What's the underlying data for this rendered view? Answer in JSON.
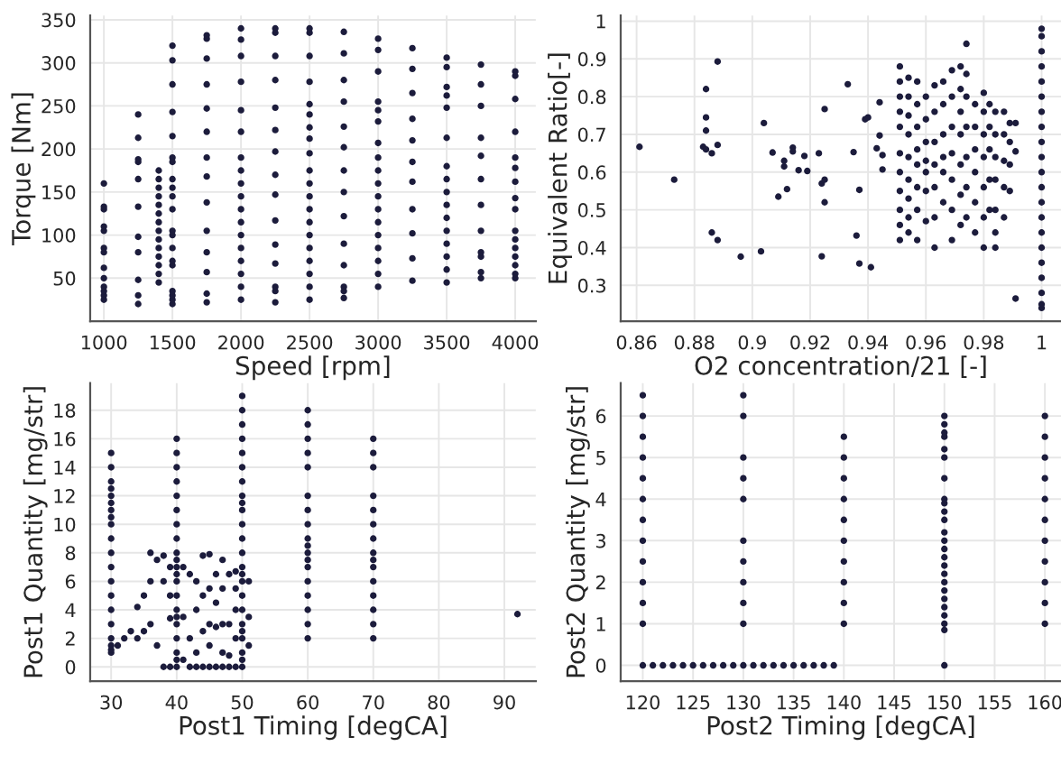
{
  "chart_data": [
    {
      "type": "scatter",
      "xlabel": "Speed [rpm]",
      "ylabel": "Torque [Nm]",
      "xlim": [
        900,
        4150
      ],
      "ylim": [
        0,
        355
      ],
      "xticks": [
        1000,
        1500,
        2000,
        2500,
        3000,
        3500,
        4000
      ],
      "yticks": [
        50,
        100,
        150,
        200,
        250,
        300,
        350
      ],
      "grid": true,
      "marker": "circle",
      "color": "#1c1c3c",
      "x": [
        1000,
        1000,
        1000,
        1000,
        1000,
        1000,
        1000,
        1000,
        1000,
        1000,
        1000,
        1000,
        1000,
        1250,
        1250,
        1250,
        1250,
        1250,
        1250,
        1250,
        1250,
        1250,
        1250,
        1250,
        1400,
        1400,
        1400,
        1400,
        1400,
        1400,
        1400,
        1400,
        1400,
        1400,
        1400,
        1400,
        1400,
        1400,
        1500,
        1500,
        1500,
        1500,
        1500,
        1500,
        1500,
        1500,
        1500,
        1500,
        1500,
        1500,
        1500,
        1500,
        1500,
        1500,
        1500,
        1500,
        1500,
        1500,
        1750,
        1750,
        1750,
        1750,
        1750,
        1750,
        1750,
        1750,
        1750,
        1750,
        1750,
        1750,
        1750,
        1750,
        2000,
        2000,
        2000,
        2000,
        2000,
        2000,
        2000,
        2000,
        2000,
        2000,
        2000,
        2000,
        2000,
        2000,
        2000,
        2000,
        2000,
        2000,
        2250,
        2250,
        2250,
        2250,
        2250,
        2250,
        2250,
        2250,
        2250,
        2250,
        2250,
        2250,
        2250,
        2250,
        2250,
        2500,
        2500,
        2500,
        2500,
        2500,
        2500,
        2500,
        2500,
        2500,
        2500,
        2500,
        2500,
        2500,
        2500,
        2500,
        2500,
        2500,
        2500,
        2500,
        2500,
        2750,
        2750,
        2750,
        2750,
        2750,
        2750,
        2750,
        2750,
        2750,
        2750,
        2750,
        2750,
        2750,
        2750,
        3000,
        3000,
        3000,
        3000,
        3000,
        3000,
        3000,
        3000,
        3000,
        3000,
        3000,
        3000,
        3000,
        3000,
        3000,
        3000,
        3000,
        3000,
        3250,
        3250,
        3250,
        3250,
        3250,
        3250,
        3250,
        3250,
        3250,
        3250,
        3250,
        3500,
        3500,
        3500,
        3500,
        3500,
        3500,
        3500,
        3500,
        3500,
        3500,
        3500,
        3500,
        3500,
        3500,
        3500,
        3500,
        3750,
        3750,
        3750,
        3750,
        3750,
        3750,
        3750,
        3750,
        3750,
        3750,
        3750,
        3750,
        4000,
        4000,
        4000,
        4000,
        4000,
        4000,
        4000,
        4000,
        4000,
        4000,
        4000,
        4000,
        4000,
        4000,
        4000,
        4000
      ],
      "values": [
        25,
        30,
        35,
        40,
        50,
        62,
        80,
        85,
        105,
        110,
        130,
        133,
        160,
        20,
        30,
        48,
        80,
        98,
        133,
        165,
        185,
        188,
        213,
        240,
        45,
        55,
        65,
        75,
        85,
        95,
        105,
        115,
        125,
        135,
        145,
        155,
        165,
        175,
        20,
        25,
        30,
        35,
        65,
        70,
        85,
        100,
        105,
        130,
        145,
        155,
        165,
        185,
        190,
        215,
        243,
        275,
        303,
        320,
        22,
        32,
        57,
        80,
        105,
        138,
        168,
        190,
        220,
        247,
        275,
        305,
        328,
        332,
        25,
        40,
        55,
        70,
        85,
        100,
        115,
        130,
        145,
        160,
        175,
        190,
        220,
        245,
        278,
        308,
        327,
        340,
        22,
        35,
        40,
        67,
        89,
        117,
        147,
        170,
        197,
        222,
        248,
        280,
        308,
        335,
        340,
        25,
        40,
        55,
        70,
        85,
        100,
        115,
        130,
        145,
        160,
        175,
        195,
        212,
        225,
        240,
        252,
        278,
        308,
        335,
        340,
        27,
        35,
        40,
        65,
        90,
        122,
        150,
        175,
        202,
        226,
        255,
        280,
        311,
        336,
        40,
        55,
        70,
        85,
        100,
        115,
        130,
        145,
        160,
        175,
        190,
        207,
        232,
        245,
        255,
        290,
        315,
        328,
        47,
        73,
        102,
        130,
        162,
        185,
        210,
        235,
        265,
        293,
        317,
        45,
        60,
        75,
        90,
        105,
        120,
        135,
        150,
        165,
        180,
        213,
        248,
        262,
        272,
        295,
        306,
        50,
        57,
        75,
        80,
        105,
        135,
        165,
        192,
        213,
        250,
        275,
        298,
        50,
        55,
        65,
        75,
        85,
        95,
        105,
        130,
        143,
        162,
        178,
        190,
        220,
        258,
        285,
        290
      ]
    },
    {
      "type": "scatter",
      "xlabel": "O2 concentration/21 [-]",
      "ylabel": "Equivalent Ratio[-]",
      "xlim": [
        0.8545,
        1.0067
      ],
      "ylim": [
        0.205,
        1.015
      ],
      "xticks": [
        {
          "value": 0.86,
          "label": "0.86"
        },
        {
          "value": 0.88,
          "label": "0.88"
        },
        {
          "value": 0.9,
          "label": "0.9"
        },
        {
          "value": 0.92,
          "label": "0.92"
        },
        {
          "value": 0.94,
          "label": "0.94"
        },
        {
          "value": 0.96,
          "label": "0.96"
        },
        {
          "value": 0.98,
          "label": "0.98"
        },
        {
          "value": 1,
          "label": "1"
        }
      ],
      "yticks": [
        0.3,
        0.4,
        0.5,
        0.6,
        0.7,
        0.8,
        0.9,
        1
      ],
      "grid": true,
      "marker": "circle",
      "color": "#1c1c3c",
      "x": [
        0.861,
        0.873,
        0.883,
        0.884,
        0.884,
        0.884,
        0.884,
        0.886,
        0.886,
        0.888,
        0.888,
        0.888,
        0.896,
        0.903,
        0.904,
        0.907,
        0.909,
        0.911,
        0.911,
        0.912,
        0.914,
        0.914,
        0.916,
        0.918,
        0.919,
        0.923,
        0.924,
        0.924,
        0.925,
        0.925,
        0.925,
        0.933,
        0.935,
        0.936,
        0.937,
        0.937,
        0.939,
        0.94,
        0.941,
        0.943,
        0.944,
        0.944,
        0.945,
        0.945,
        0.951,
        0.951,
        0.951,
        0.951,
        0.951,
        0.951,
        0.951,
        0.951,
        0.951,
        0.951,
        0.951,
        0.954,
        0.954,
        0.954,
        0.954,
        0.954,
        0.954,
        0.954,
        0.954,
        0.954,
        0.957,
        0.957,
        0.957,
        0.957,
        0.957,
        0.957,
        0.957,
        0.957,
        0.96,
        0.96,
        0.96,
        0.96,
        0.96,
        0.96,
        0.96,
        0.963,
        0.963,
        0.963,
        0.963,
        0.963,
        0.963,
        0.963,
        0.966,
        0.966,
        0.966,
        0.966,
        0.966,
        0.966,
        0.969,
        0.969,
        0.969,
        0.969,
        0.969,
        0.969,
        0.969,
        0.972,
        0.972,
        0.972,
        0.972,
        0.972,
        0.972,
        0.972,
        0.974,
        0.974,
        0.974,
        0.974,
        0.974,
        0.974,
        0.974,
        0.977,
        0.977,
        0.977,
        0.977,
        0.977,
        0.977,
        0.98,
        0.98,
        0.98,
        0.98,
        0.98,
        0.98,
        0.98,
        0.982,
        0.982,
        0.982,
        0.982,
        0.982,
        0.984,
        0.984,
        0.984,
        0.984,
        0.984,
        0.984,
        0.984,
        0.987,
        0.987,
        0.987,
        0.987,
        0.987,
        0.989,
        0.989,
        0.989,
        0.989,
        0.991,
        0.991,
        0.991,
        1,
        1,
        1,
        1,
        1,
        1,
        1,
        1,
        1,
        1,
        1,
        1,
        1,
        1,
        1,
        1,
        1,
        1,
        1,
        1,
        1
      ],
      "values": [
        0.667,
        0.58,
        0.667,
        0.66,
        0.82,
        0.745,
        0.71,
        0.65,
        0.44,
        0.42,
        0.893,
        0.672,
        0.376,
        0.39,
        0.73,
        0.652,
        0.535,
        0.63,
        0.615,
        0.555,
        0.655,
        0.665,
        0.605,
        0.643,
        0.603,
        0.65,
        0.377,
        0.57,
        0.58,
        0.52,
        0.767,
        0.833,
        0.653,
        0.432,
        0.358,
        0.553,
        0.74,
        0.745,
        0.348,
        0.663,
        0.785,
        0.697,
        0.645,
        0.607,
        0.42,
        0.46,
        0.5,
        0.55,
        0.6,
        0.65,
        0.72,
        0.76,
        0.8,
        0.84,
        0.88,
        0.44,
        0.48,
        0.53,
        0.58,
        0.64,
        0.7,
        0.75,
        0.8,
        0.85,
        0.42,
        0.5,
        0.56,
        0.62,
        0.66,
        0.72,
        0.78,
        0.84,
        0.47,
        0.55,
        0.6,
        0.63,
        0.68,
        0.74,
        0.8,
        0.4,
        0.48,
        0.56,
        0.62,
        0.68,
        0.76,
        0.83,
        0.52,
        0.6,
        0.64,
        0.7,
        0.78,
        0.84,
        0.42,
        0.5,
        0.58,
        0.65,
        0.72,
        0.8,
        0.87,
        0.46,
        0.54,
        0.62,
        0.7,
        0.76,
        0.82,
        0.88,
        0.48,
        0.56,
        0.64,
        0.72,
        0.8,
        0.86,
        0.94,
        0.44,
        0.52,
        0.6,
        0.66,
        0.72,
        0.78,
        0.4,
        0.48,
        0.56,
        0.64,
        0.7,
        0.76,
        0.81,
        0.5,
        0.58,
        0.66,
        0.72,
        0.78,
        0.4,
        0.44,
        0.5,
        0.58,
        0.64,
        0.7,
        0.76,
        0.48,
        0.56,
        0.63,
        0.7,
        0.76,
        0.55,
        0.62,
        0.68,
        0.73,
        0.265,
        0.655,
        0.73,
        0.24,
        0.25,
        0.28,
        0.32,
        0.36,
        0.4,
        0.44,
        0.48,
        0.52,
        0.56,
        0.6,
        0.64,
        0.68,
        0.72,
        0.76,
        0.8,
        0.84,
        0.88,
        0.92,
        0.96,
        0.98
      ]
    },
    {
      "type": "scatter",
      "xlabel": "Post1 Timing [degCA]",
      "ylabel": "Post1 Quantity [mg/str]",
      "xlim": [
        26.8,
        94.8
      ],
      "ylim": [
        -1,
        19.9
      ],
      "xticks": [
        30,
        40,
        50,
        60,
        70,
        80,
        90
      ],
      "yticks": [
        0,
        2,
        4,
        6,
        8,
        10,
        12,
        14,
        16,
        18
      ],
      "grid": true,
      "marker": "circle",
      "color": "#1c1c3c",
      "x": [
        30,
        30,
        30,
        30,
        30,
        30,
        30,
        30,
        30,
        30,
        30,
        30,
        30,
        30,
        30,
        30,
        30,
        30,
        30,
        30,
        40,
        40,
        40,
        40,
        40,
        40,
        40,
        40,
        40,
        40,
        40,
        40,
        40,
        40,
        40,
        40,
        40,
        40,
        40,
        40,
        40,
        50,
        50,
        50,
        50,
        50,
        50,
        50,
        50,
        50,
        50,
        50,
        50,
        50,
        50,
        50,
        50,
        50,
        50,
        50,
        50,
        50,
        50,
        50,
        50,
        60,
        60,
        60,
        60,
        60,
        60,
        60,
        60,
        60,
        60,
        60,
        60,
        60,
        60,
        60,
        60,
        60,
        60,
        70,
        70,
        70,
        70,
        70,
        70,
        70,
        70,
        70,
        70,
        70,
        70,
        70,
        70,
        70,
        92,
        31,
        32,
        33,
        34,
        34,
        35,
        35,
        36,
        36,
        36,
        37,
        37,
        38,
        38,
        39,
        39,
        39,
        41,
        41,
        41,
        42,
        42,
        43,
        43,
        43,
        44,
        44,
        44,
        45,
        45,
        45,
        45,
        46,
        46,
        46,
        47,
        47,
        47,
        47,
        48,
        48,
        48,
        49,
        49,
        49,
        49,
        51,
        51,
        51,
        38,
        39,
        42,
        43,
        44,
        45,
        46,
        47,
        48,
        49
      ],
      "values": [
        1,
        1.2,
        1.5,
        2,
        3,
        4,
        5,
        6,
        7,
        8,
        9,
        10,
        10.5,
        11,
        11.5,
        12,
        12.5,
        13,
        14,
        15,
        0,
        0.5,
        1,
        2,
        3,
        3.5,
        4,
        5,
        6,
        6.5,
        7,
        7.5,
        8,
        9,
        10,
        11,
        12,
        13,
        14,
        15,
        16,
        0,
        0.5,
        1,
        2,
        2.5,
        3,
        4,
        5,
        6,
        6.5,
        7,
        8,
        9,
        10,
        11,
        11.5,
        12,
        13,
        14,
        15,
        16,
        17,
        18,
        19,
        2,
        3,
        4,
        5,
        6,
        7,
        7.5,
        8,
        8.5,
        9,
        10,
        11,
        12,
        14,
        15,
        16,
        17,
        18,
        2,
        3,
        4,
        5,
        6,
        7,
        7.5,
        8,
        9,
        10,
        11,
        12,
        14,
        15,
        16,
        3.7,
        1.5,
        2,
        2.5,
        2,
        4.2,
        2.5,
        5,
        3,
        6,
        8,
        1.5,
        7.5,
        7.8,
        6,
        5,
        3.4,
        7,
        7,
        3.5,
        0.5,
        2,
        6.5,
        1,
        4,
        6,
        2.5,
        5,
        7.8,
        1.5,
        3,
        5.5,
        7.9,
        2.8,
        4.5,
        6.5,
        1,
        3,
        5.5,
        7.5,
        0.8,
        3,
        6.5,
        2,
        4,
        5.5,
        6.7,
        1.5,
        3.5,
        6,
        0,
        0,
        0,
        0,
        0,
        0,
        0,
        0,
        0,
        0
      ]
    },
    {
      "type": "scatter",
      "xlabel": "Post2 Timing [degCA]",
      "ylabel": "Post2 Quantity [mg/str]",
      "xlim": [
        117.8,
        161.6
      ],
      "ylim": [
        -0.38,
        6.79
      ],
      "xticks": [
        120,
        125,
        130,
        135,
        140,
        145,
        150,
        155,
        160
      ],
      "yticks": [
        0,
        1,
        2,
        3,
        4,
        5,
        6
      ],
      "grid": true,
      "marker": "circle",
      "color": "#1c1c3c",
      "x": [
        120,
        120,
        120,
        120,
        120,
        120,
        120,
        120,
        120,
        120,
        120,
        120,
        120,
        130,
        130,
        130,
        130,
        130,
        130,
        130,
        130,
        130,
        130,
        130,
        140,
        140,
        140,
        140,
        140,
        140,
        140,
        140,
        140,
        140,
        150,
        150,
        150,
        150,
        150,
        150,
        150,
        150,
        150,
        150,
        150,
        150,
        150,
        150,
        150,
        150,
        150,
        150,
        150,
        150,
        150,
        150,
        150,
        150,
        150,
        160,
        160,
        160,
        160,
        160,
        160,
        160,
        160,
        160,
        160,
        160,
        121,
        122,
        123,
        124,
        125,
        126,
        127,
        128,
        129,
        131,
        132,
        133,
        134,
        135,
        136,
        137,
        138,
        139
      ],
      "values": [
        0,
        1,
        1.5,
        2,
        2.5,
        3,
        3.5,
        4,
        4.5,
        5,
        5.5,
        6,
        6.5,
        0,
        1,
        1.5,
        2,
        2.5,
        3,
        4,
        4.5,
        5,
        6,
        6.5,
        1,
        1.5,
        2,
        2.5,
        3,
        3.5,
        4,
        4.5,
        5,
        5.5,
        0,
        0.85,
        1,
        1.2,
        1.4,
        1.6,
        1.8,
        2,
        2.2,
        2.4,
        2.6,
        2.8,
        3,
        3.2,
        3.5,
        3.7,
        3.9,
        4,
        4.5,
        5,
        5.2,
        5.5,
        5.6,
        5.8,
        6,
        1,
        1.5,
        2,
        2.5,
        3,
        3.5,
        4,
        4.5,
        5,
        5.5,
        6,
        0,
        0,
        0,
        0,
        0,
        0,
        0,
        0,
        0,
        0,
        0,
        0,
        0,
        0,
        0,
        0,
        0,
        0
      ]
    }
  ]
}
